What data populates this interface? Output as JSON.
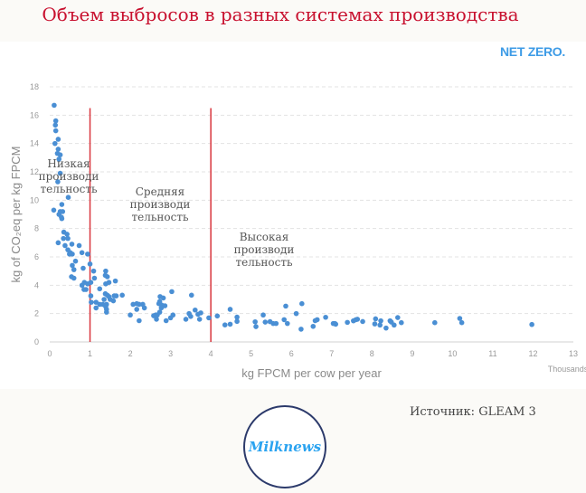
{
  "title": "Объем выбросов в разных системах производства",
  "brand": "NET ZERO.",
  "source": "Источник: GLEAM 3",
  "logo_text": "Milknews",
  "colors": {
    "title": "#c8102e",
    "points": "#4a8fd4",
    "lines": "#d9363e",
    "brand": "#3d9be6"
  },
  "chart_data": {
    "type": "scatter",
    "xlabel": "kg FPCM per cow per year",
    "xunit_note": "Thousands",
    "ylabel": "kg of CO₂eq per kg FPCM",
    "xlim": [
      0,
      13
    ],
    "ylim": [
      0,
      18
    ],
    "xticks": [
      "0",
      "1",
      "2",
      "3",
      "4",
      "5",
      "6",
      "7",
      "8",
      "9",
      "10",
      "11",
      "12",
      "13"
    ],
    "yticks": [
      "0",
      "2",
      "4",
      "6",
      "8",
      "10",
      "12",
      "14",
      "16",
      "18"
    ],
    "grid": "horizontal dashed",
    "vlines": [
      1,
      4
    ],
    "annotations": [
      {
        "lines": [
          "Низкая",
          "производи",
          "тельность"
        ]
      },
      {
        "lines": [
          "Средняя",
          "производи",
          "тельность"
        ]
      },
      {
        "lines": [
          "Высокая",
          "производи",
          "тельность"
        ]
      }
    ],
    "points": [
      [
        0.11,
        16.7
      ],
      [
        0.15,
        15.6
      ],
      [
        0.14,
        15.3
      ],
      [
        0.15,
        14.9
      ],
      [
        0.21,
        14.3
      ],
      [
        0.13,
        14.0
      ],
      [
        0.21,
        13.6
      ],
      [
        0.19,
        13.3
      ],
      [
        0.26,
        13.2
      ],
      [
        0.23,
        12.9
      ],
      [
        0.26,
        11.9
      ],
      [
        0.2,
        11.3
      ],
      [
        0.46,
        10.2
      ],
      [
        0.1,
        9.3
      ],
      [
        0.3,
        9.7
      ],
      [
        0.26,
        9.2
      ],
      [
        0.32,
        9.2
      ],
      [
        0.23,
        9.0
      ],
      [
        0.29,
        8.8
      ],
      [
        0.3,
        8.7
      ],
      [
        0.21,
        7.0
      ],
      [
        0.35,
        7.75
      ],
      [
        0.43,
        7.6
      ],
      [
        0.34,
        7.3
      ],
      [
        0.45,
        7.3
      ],
      [
        0.38,
        6.8
      ],
      [
        0.55,
        6.9
      ],
      [
        0.73,
        6.8
      ],
      [
        0.45,
        6.5
      ],
      [
        0.51,
        6.3
      ],
      [
        0.56,
        6.2
      ],
      [
        0.49,
        6.2
      ],
      [
        0.8,
        6.3
      ],
      [
        0.94,
        6.2
      ],
      [
        0.64,
        5.7
      ],
      [
        0.56,
        5.4
      ],
      [
        0.6,
        5.1
      ],
      [
        0.83,
        5.2
      ],
      [
        1.0,
        5.5
      ],
      [
        1.09,
        5.0
      ],
      [
        0.54,
        4.6
      ],
      [
        0.6,
        4.5
      ],
      [
        0.8,
        4.0
      ],
      [
        0.86,
        4.2
      ],
      [
        0.94,
        4.1
      ],
      [
        1.02,
        4.2
      ],
      [
        1.11,
        4.5
      ],
      [
        0.85,
        3.7
      ],
      [
        0.9,
        3.7
      ],
      [
        1.02,
        3.25
      ],
      [
        1.03,
        2.8
      ],
      [
        1.15,
        2.8
      ],
      [
        1.15,
        2.4
      ],
      [
        1.24,
        3.75
      ],
      [
        1.39,
        5.0
      ],
      [
        1.38,
        4.7
      ],
      [
        1.43,
        4.6
      ],
      [
        1.39,
        4.1
      ],
      [
        1.47,
        4.2
      ],
      [
        1.63,
        4.3
      ],
      [
        1.38,
        3.4
      ],
      [
        1.43,
        3.3
      ],
      [
        1.47,
        3.2
      ],
      [
        1.35,
        3.0
      ],
      [
        1.5,
        3.0
      ],
      [
        1.6,
        3.25
      ],
      [
        1.65,
        3.25
      ],
      [
        1.58,
        2.9
      ],
      [
        1.8,
        3.3
      ],
      [
        1.24,
        2.65
      ],
      [
        1.32,
        2.65
      ],
      [
        1.41,
        2.65
      ],
      [
        1.39,
        2.5
      ],
      [
        1.41,
        2.3
      ],
      [
        1.41,
        2.1
      ],
      [
        2.0,
        1.9
      ],
      [
        2.07,
        2.65
      ],
      [
        2.16,
        2.7
      ],
      [
        2.22,
        2.65
      ],
      [
        2.31,
        2.65
      ],
      [
        2.35,
        2.4
      ],
      [
        2.16,
        2.3
      ],
      [
        2.22,
        1.5
      ],
      [
        2.58,
        1.85
      ],
      [
        2.63,
        1.9
      ],
      [
        2.65,
        1.6
      ],
      [
        2.71,
        2.7
      ],
      [
        2.74,
        3.2
      ],
      [
        2.82,
        3.1
      ],
      [
        2.73,
        2.85
      ],
      [
        2.78,
        2.6
      ],
      [
        2.86,
        2.55
      ],
      [
        2.77,
        2.4
      ],
      [
        2.73,
        2.1
      ],
      [
        2.67,
        1.9
      ],
      [
        2.89,
        1.5
      ],
      [
        3.03,
        3.55
      ],
      [
        3.0,
        1.7
      ],
      [
        3.06,
        1.9
      ],
      [
        3.38,
        1.6
      ],
      [
        3.46,
        2.0
      ],
      [
        3.52,
        3.3
      ],
      [
        3.5,
        1.8
      ],
      [
        3.61,
        2.25
      ],
      [
        3.68,
        1.95
      ],
      [
        3.72,
        1.6
      ],
      [
        3.75,
        2.05
      ],
      [
        3.95,
        1.7
      ],
      [
        4.16,
        1.83
      ],
      [
        4.35,
        1.2
      ],
      [
        4.48,
        1.25
      ],
      [
        4.48,
        2.3
      ],
      [
        4.65,
        1.75
      ],
      [
        4.65,
        1.45
      ],
      [
        5.1,
        1.42
      ],
      [
        5.12,
        1.08
      ],
      [
        5.3,
        1.9
      ],
      [
        5.35,
        1.4
      ],
      [
        5.47,
        1.43
      ],
      [
        5.55,
        1.3
      ],
      [
        5.62,
        1.3
      ],
      [
        5.82,
        1.57
      ],
      [
        5.86,
        2.53
      ],
      [
        5.9,
        1.3
      ],
      [
        6.12,
        2.0
      ],
      [
        6.26,
        2.7
      ],
      [
        6.24,
        0.9
      ],
      [
        6.54,
        1.1
      ],
      [
        6.59,
        1.5
      ],
      [
        6.64,
        1.57
      ],
      [
        6.85,
        1.74
      ],
      [
        7.04,
        1.3
      ],
      [
        7.08,
        1.3
      ],
      [
        7.1,
        1.25
      ],
      [
        7.39,
        1.38
      ],
      [
        7.54,
        1.49
      ],
      [
        7.6,
        1.57
      ],
      [
        7.64,
        1.6
      ],
      [
        7.77,
        1.44
      ],
      [
        8.07,
        1.27
      ],
      [
        8.09,
        1.63
      ],
      [
        8.2,
        1.19
      ],
      [
        8.22,
        1.49
      ],
      [
        8.35,
        0.98
      ],
      [
        8.45,
        1.49
      ],
      [
        8.48,
        1.4
      ],
      [
        8.55,
        1.19
      ],
      [
        8.64,
        1.72
      ],
      [
        8.73,
        1.36
      ],
      [
        9.56,
        1.36
      ],
      [
        10.18,
        1.66
      ],
      [
        10.23,
        1.36
      ],
      [
        11.97,
        1.23
      ]
    ]
  }
}
